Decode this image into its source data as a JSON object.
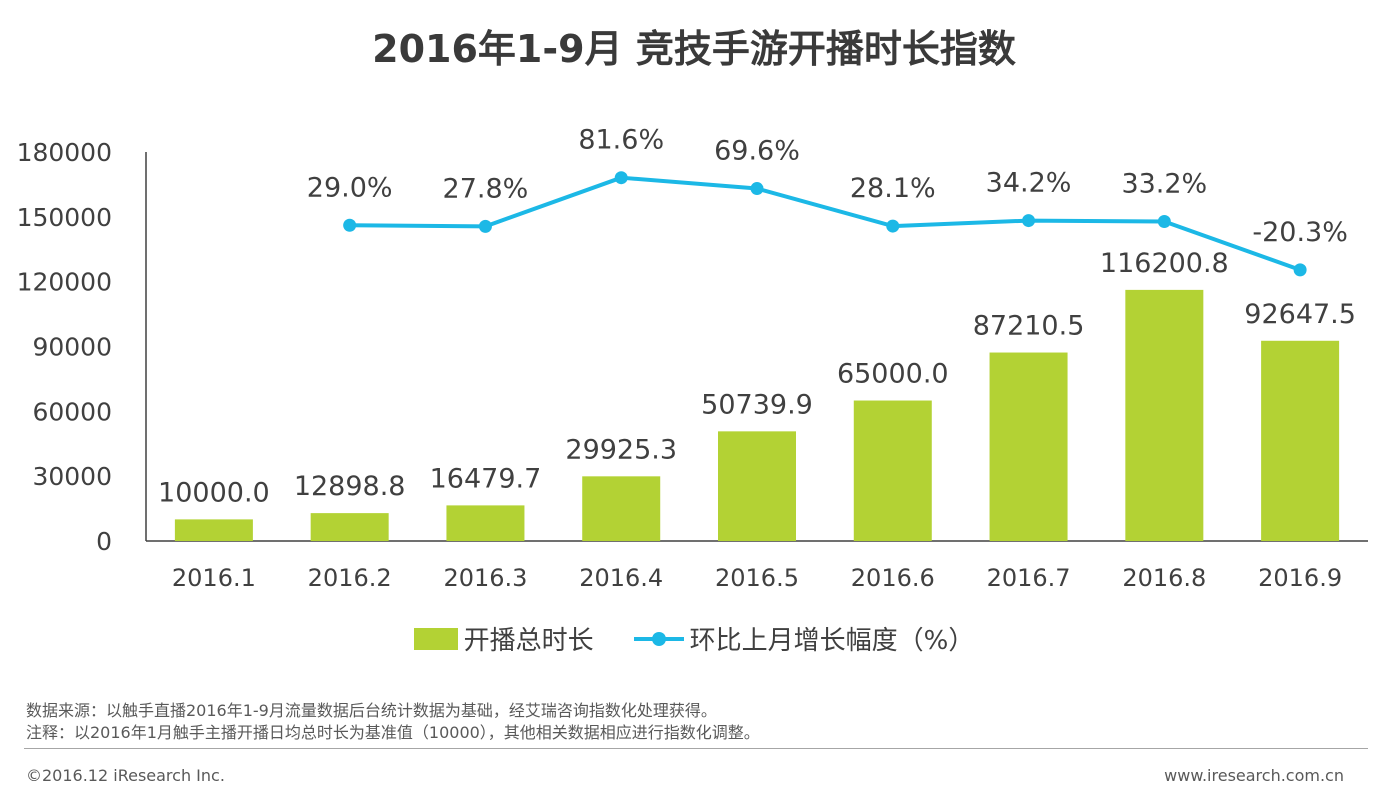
{
  "title": "2016年1-9月 竞技手游开播时长指数",
  "chart_data": {
    "type": "bar",
    "categories": [
      "2016.1",
      "2016.2",
      "2016.3",
      "2016.4",
      "2016.5",
      "2016.6",
      "2016.7",
      "2016.8",
      "2016.9"
    ],
    "series": [
      {
        "name": "开播总时长",
        "type": "bar",
        "values": [
          10000.0,
          12898.8,
          16479.7,
          29925.3,
          50739.9,
          65000.0,
          87210.5,
          116200.8,
          92647.5
        ],
        "labels": [
          "10000.0",
          "12898.8",
          "16479.7",
          "29925.3",
          "50739.9",
          "65000.0",
          "87210.5",
          "116200.8",
          "92647.5"
        ],
        "color": "#b3d234"
      },
      {
        "name": "环比上月增长幅度（%）",
        "type": "line",
        "values": [
          null,
          29.0,
          27.8,
          81.6,
          69.6,
          28.1,
          34.2,
          33.2,
          -20.3
        ],
        "labels": [
          "",
          "29.0%",
          "27.8%",
          "81.6%",
          "69.6%",
          "28.1%",
          "34.2%",
          "33.2%",
          "-20.3%"
        ],
        "color": "#1cb8e6",
        "secondary_axis": true,
        "axis_hidden": true
      }
    ],
    "y_ticks": [
      "0",
      "30000",
      "60000",
      "90000",
      "120000",
      "150000",
      "180000"
    ],
    "ylim": [
      0,
      180000
    ],
    "y2lim": [
      -320,
      110
    ],
    "xlabel": "",
    "ylabel": "",
    "legend_position": "bottom-center",
    "grid": false
  },
  "notes": {
    "source": "数据来源：以触手直播2016年1-9月流量数据后台统计数据为基础，经艾瑞咨询指数化处理获得。",
    "remark": "注释：以2016年1月触手主播开播日均总时长为基准值（10000），其他相关数据相应进行指数化调整。"
  },
  "footer": {
    "copyright": "©2016.12 iResearch Inc.",
    "website": "www.iresearch.com.cn"
  }
}
